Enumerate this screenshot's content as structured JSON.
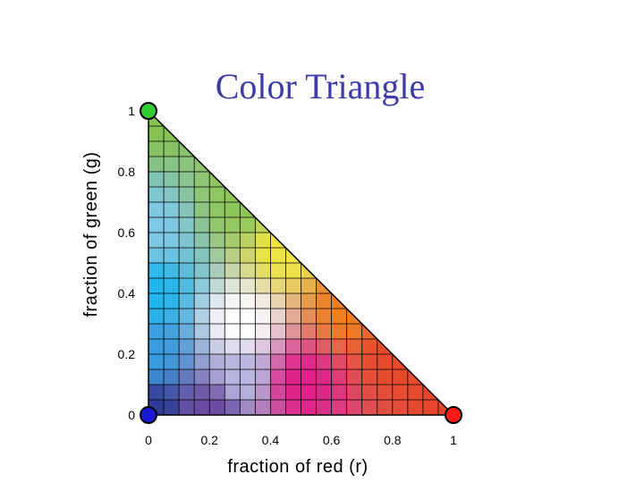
{
  "chart_data": {
    "type": "heatmap",
    "title": "Color Triangle",
    "xlabel": "fraction of red (r)",
    "ylabel": "fraction of green (g)",
    "xlim": [
      0,
      1
    ],
    "ylim": [
      0,
      1
    ],
    "x_ticks": [
      "0",
      "0.2",
      "0.4",
      "0.6",
      "0.8",
      "1"
    ],
    "y_ticks": [
      "0",
      "0.2",
      "0.4",
      "0.6",
      "0.8",
      "1"
    ],
    "x_tick_values": [
      0,
      0.2,
      0.4,
      0.6,
      0.8,
      1
    ],
    "y_tick_values": [
      0,
      0.2,
      0.4,
      0.6,
      0.8,
      1
    ],
    "grid": true,
    "grid_divisions": 20,
    "region": "triangle r + g <= 1",
    "vertices": [
      {
        "name": "green",
        "r": 0,
        "g": 1,
        "color": "#33cc33"
      },
      {
        "name": "blue",
        "r": 0,
        "g": 0,
        "color": "#1a1ad6"
      },
      {
        "name": "red",
        "r": 1,
        "g": 0,
        "color": "#ff1a1a"
      }
    ],
    "anchor_colors": [
      {
        "r": 0,
        "g": 1,
        "color": "#86c250"
      },
      {
        "r": 0,
        "g": 0.6,
        "color": "#7fc8e6"
      },
      {
        "r": 0,
        "g": 0.4,
        "color": "#1fb6ec"
      },
      {
        "r": 0,
        "g": 0.2,
        "color": "#3a9be0"
      },
      {
        "r": 0,
        "g": 0,
        "color": "#2e3a94"
      },
      {
        "r": 0.2,
        "g": 0,
        "color": "#6a4aa2"
      },
      {
        "r": 0.3,
        "g": 0.7,
        "color": "#8ec65a"
      },
      {
        "r": 0.45,
        "g": 0.55,
        "color": "#f0e640"
      },
      {
        "r": 0.3,
        "g": 0.3,
        "color": "#ffffff"
      },
      {
        "r": 0.3,
        "g": 0.12,
        "color": "#b8b6e0"
      },
      {
        "r": 0.5,
        "g": 0.1,
        "color": "#e0208a"
      },
      {
        "r": 0.65,
        "g": 0.35,
        "color": "#ee8020"
      },
      {
        "r": 0.8,
        "g": 0.2,
        "color": "#e84a2a"
      },
      {
        "r": 1,
        "g": 0,
        "color": "#e8442a"
      }
    ]
  }
}
